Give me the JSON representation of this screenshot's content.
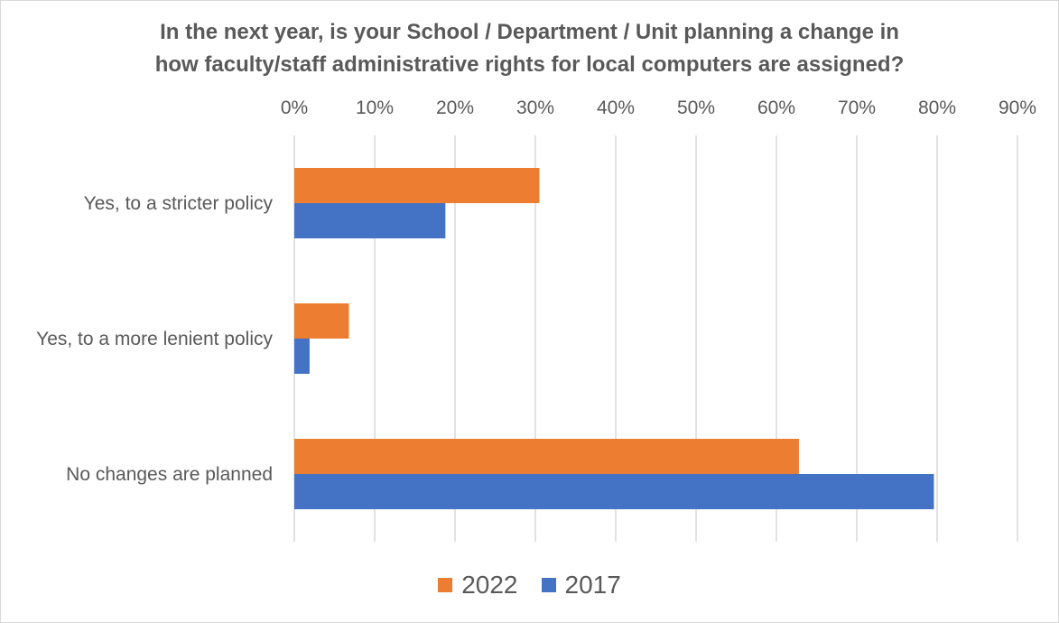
{
  "chart_data": {
    "type": "bar",
    "orientation": "horizontal",
    "title_lines": [
      "In the next year, is your School / Department / Unit planning a change in",
      "how faculty/staff administrative rights for local computers are assigned?"
    ],
    "categories": [
      "Yes, to a stricter policy",
      "Yes, to a more lenient policy",
      "No changes are planned"
    ],
    "series": [
      {
        "name": "2022",
        "color": "#ED7D31",
        "values": [
          30.5,
          6.8,
          62.8
        ]
      },
      {
        "name": "2017",
        "color": "#4472C4",
        "values": [
          18.8,
          1.9,
          79.6
        ]
      }
    ],
    "xlim": [
      0,
      90
    ],
    "x_ticks": [
      "0%",
      "10%",
      "20%",
      "30%",
      "40%",
      "50%",
      "60%",
      "70%",
      "80%",
      "90%"
    ],
    "x_axis_position": "top",
    "grid": true,
    "legend_position": "bottom"
  }
}
